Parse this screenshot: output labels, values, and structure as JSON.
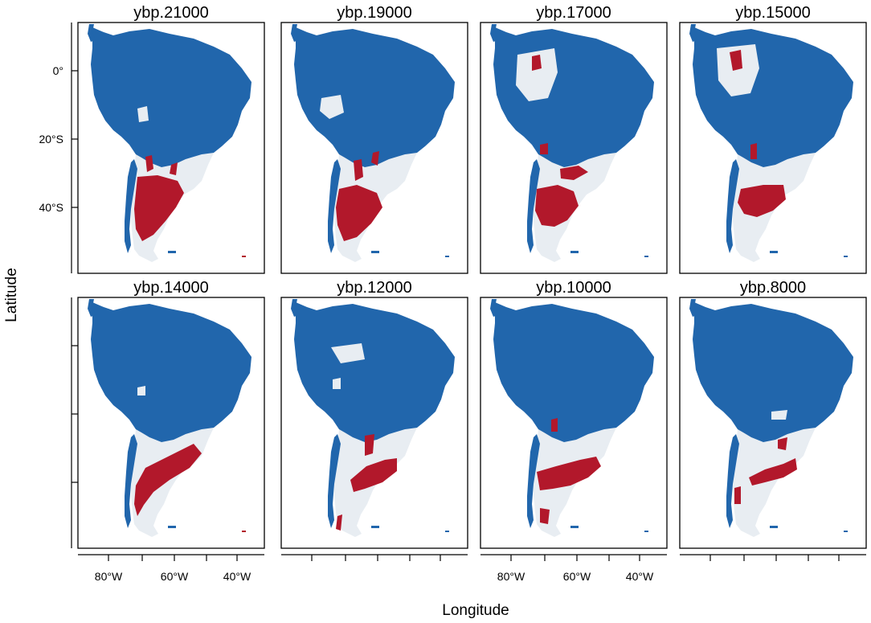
{
  "figure": {
    "xlabel": "Longitude",
    "ylabel": "Latitude",
    "colors": {
      "land": "#e8edf2",
      "blue_class": "#2166ac",
      "red_class": "#b2182b",
      "frame": "#000000"
    },
    "x_ticks": {
      "top_row": [],
      "bottom_row": [
        "80°W",
        "60°W",
        "40°W"
      ]
    },
    "y_ticks": [
      "0°",
      "20°S",
      "40°S"
    ],
    "panels": [
      {
        "title": "ybp.21000"
      },
      {
        "title": "ybp.19000"
      },
      {
        "title": "ybp.17000"
      },
      {
        "title": "ybp.15000"
      },
      {
        "title": "ybp.14000"
      },
      {
        "title": "ybp.12000"
      },
      {
        "title": "ybp.10000"
      },
      {
        "title": "ybp.8000"
      }
    ]
  }
}
